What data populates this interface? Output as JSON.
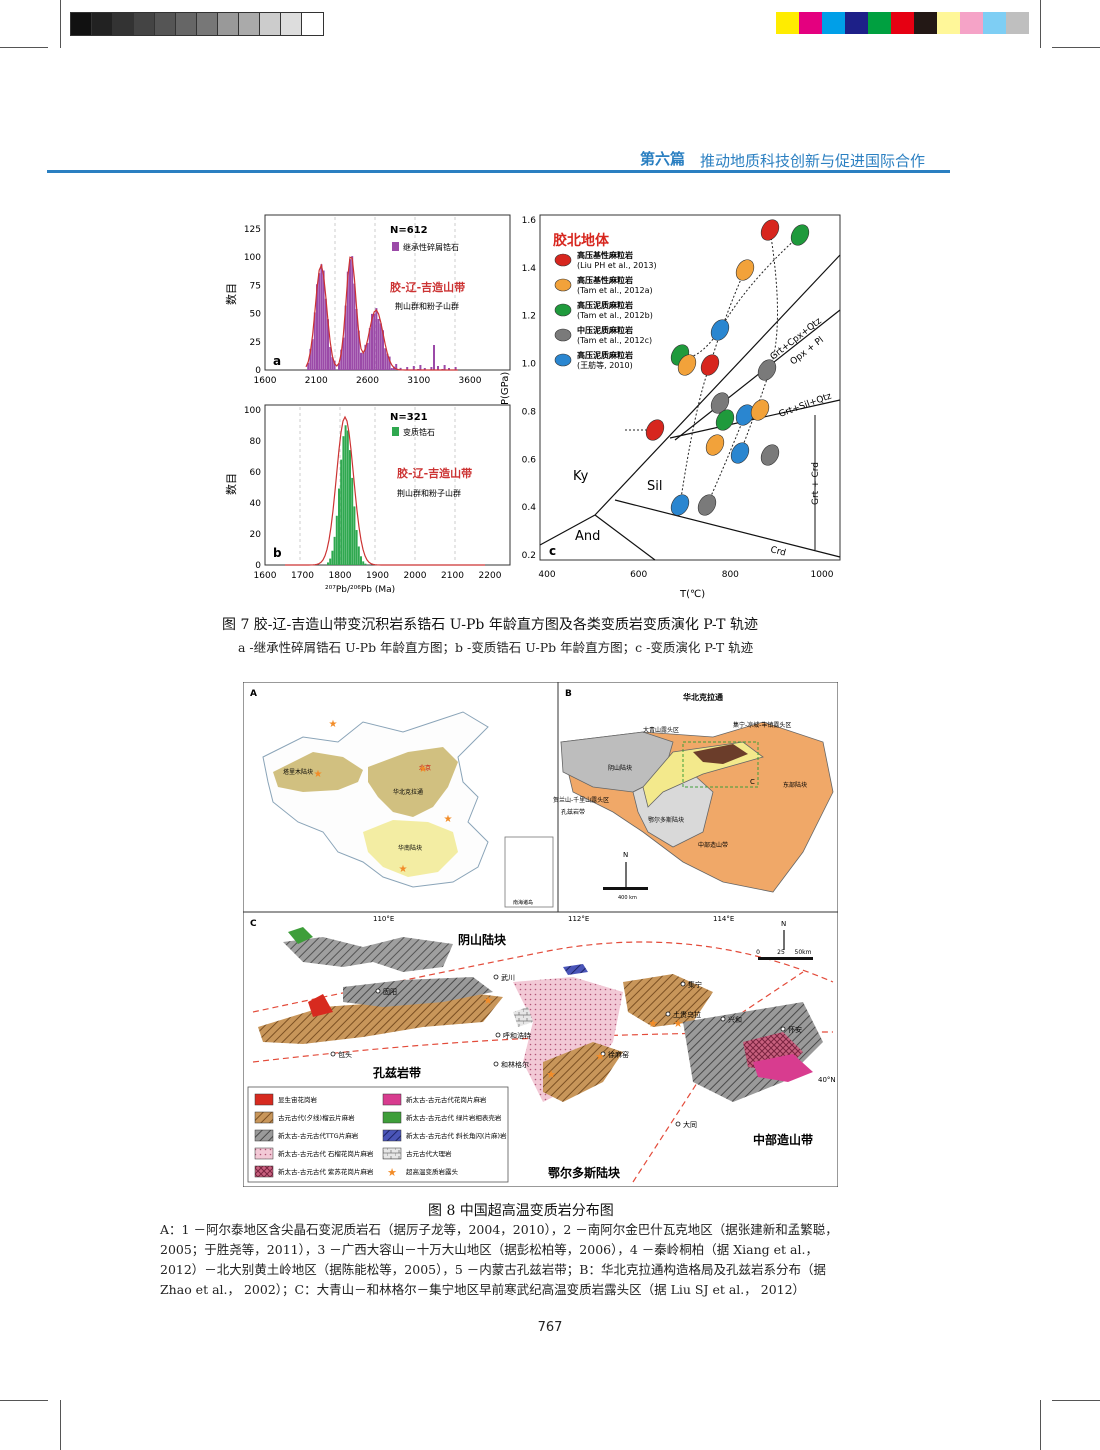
{
  "header": {
    "part_label": "第六篇",
    "title": "推动地质科技创新与促进国际合作"
  },
  "colors": {
    "grayscale_bar": [
      "#111111",
      "#222222",
      "#333333",
      "#444444",
      "#555555",
      "#666666",
      "#777777",
      "#999999",
      "#aaaaaa",
      "#cccccc",
      "#dddddd",
      "#ffffff"
    ],
    "color_bar": [
      "#ffec00",
      "#e4007f",
      "#009fe8",
      "#1d2088",
      "#00a040",
      "#e60012",
      "#231815",
      "#fff799",
      "#f5a3c7",
      "#7ecef4",
      "#bfbfbf"
    ],
    "accent": "#2a7fc1",
    "bar_purple": "#9b4aa8",
    "bar_green": "#2fa84f",
    "curve_red": "#cc3333"
  },
  "figure7": {
    "panel_a": {
      "label": "a",
      "n": "N=612",
      "legend": "继承性碎屑锆石",
      "belt": "胶-辽-吉造山带",
      "group": "荆山群和粉子山群",
      "ylabel": "数目",
      "yticks": [
        "0",
        "25",
        "50",
        "75",
        "100",
        "125"
      ],
      "xticks": [
        "1600",
        "2100",
        "2600",
        "3100",
        "3600"
      ]
    },
    "panel_b": {
      "label": "b",
      "n": "N=321",
      "legend": "变质锆石",
      "belt": "胶-辽-吉造山带",
      "group": "荆山群和粉子山群",
      "ylabel": "数目",
      "yticks": [
        "0",
        "20",
        "40",
        "60",
        "80",
        "100"
      ],
      "xticks": [
        "1600",
        "1700",
        "1800",
        "1900",
        "2000",
        "2100",
        "2200"
      ],
      "xlabel": "²⁰⁷Pb/²⁰⁶Pb (Ma)"
    },
    "panel_c": {
      "label": "c",
      "title": "胶北地体",
      "ylabel": "P(GPa)",
      "xlabel": "T(℃)",
      "yticks": [
        "0.2",
        "0.4",
        "0.6",
        "0.8",
        "1.0",
        "1.2",
        "1.4",
        "1.6"
      ],
      "xticks": [
        "400",
        "600",
        "800",
        "1000"
      ],
      "legend": [
        {
          "name": "高压基性麻粒岩",
          "ref": "(Liu PH et al., 2013)",
          "color": "#d7261e"
        },
        {
          "name": "高压基性麻粒岩",
          "ref": "(Tam et al., 2012a)",
          "color": "#f2a23a"
        },
        {
          "name": "高压泥质麻粒岩",
          "ref": "(Tam et al., 2012b)",
          "color": "#1f9a3c"
        },
        {
          "name": "中压泥质麻粒岩",
          "ref": "(Tam et al., 2012c)",
          "color": "#7a7a7a"
        },
        {
          "name": "高压泥质麻粒岩",
          "ref": "(王舫等, 2010)",
          "color": "#2a86d0"
        }
      ],
      "reaction_labels": [
        "Grt+Cpx+Qtz",
        "Opx + Pl",
        "Grt+Sil+Qtz",
        "Grt + Crd",
        "Crd"
      ],
      "field_labels": [
        "Ky",
        "Sil",
        "And"
      ]
    },
    "caption_title": "图 7 胶-辽-吉造山带变沉积岩系锆石 U-Pb 年龄直方图及各类变质岩变质演化 P-T 轨迹",
    "caption_sub": "a -继承性碎屑锆石 U-Pb 年龄直方图；b -变质锆石 U-Pb 年龄直方图；c -变质演化 P-T 轨迹"
  },
  "figure8": {
    "panel_a": {
      "label": "A",
      "labels": [
        "塔里木陆块",
        "北京",
        "华北克拉通",
        "华南陆块",
        "南海诸岛"
      ]
    },
    "panel_b": {
      "label": "B",
      "title": "华北克拉通",
      "labels": [
        "大青山露头区",
        "集宁-凉城-丰镇露头区",
        "阴山陆块",
        "贺兰山-千里山露头区",
        "孔兹岩带",
        "鄂尔多斯陆块",
        "中部造山带",
        "东部陆块",
        "C"
      ],
      "scale": "400 km",
      "north": "N"
    },
    "panel_c": {
      "label": "C",
      "coords": [
        "110°E",
        "112°E",
        "114°E",
        "40°N"
      ],
      "regions": [
        "阴山陆块",
        "孔兹岩带",
        "鄂尔多斯陆块",
        "中部造山带"
      ],
      "places": [
        "固阳",
        "武川",
        "呼和浩特",
        "包头",
        "和林格尔",
        "徐麻窑",
        "集宁",
        "土贵乌拉",
        "兴和",
        "怀安",
        "大同"
      ],
      "scale": [
        "0",
        "25",
        "50km"
      ],
      "north": "N",
      "legend": [
        {
          "text": "显生宙花岗岩",
          "color": "#d72a1f",
          "pattern": "solid"
        },
        {
          "text": "新太古-古元古代花岗片麻岩",
          "color": "#d83c8f",
          "pattern": "solid"
        },
        {
          "text": "古元古代(夕线)榴云片麻岩",
          "color": "#c08a4c",
          "pattern": "stripes"
        },
        {
          "text": "新太古-古元古代 绿片岩相表壳岩",
          "color": "#3e9e3a",
          "pattern": "solid"
        },
        {
          "text": "新太古-古元古代TTG片麻岩",
          "color": "#8a8a8a",
          "pattern": "stripes"
        },
        {
          "text": "新太古-古元古代 斜长角闪(片麻)岩",
          "color": "#3844a8",
          "pattern": "stripes"
        },
        {
          "text": "新太古-古元古代 石榴花岗片麻岩",
          "color": "#f2c9d6",
          "pattern": "dots"
        },
        {
          "text": "古元古代大理岩",
          "color": "#cfcfcf",
          "pattern": "bricks"
        },
        {
          "text": "新太古-古元古代 紫苏花岗片麻岩",
          "color": "#c8607e",
          "pattern": "cross"
        },
        {
          "text": "超高温变质岩露头",
          "color": "#f28c28",
          "pattern": "star"
        }
      ]
    },
    "caption_title": "图 8 中国超高温变质岩分布图",
    "caption_body": [
      "A：1 －阿尔泰地区含尖晶石变泥质岩石（据厉子龙等，2004，2010），2 －南阿尔金巴什瓦克地区（据张建新和孟繁聪，",
      "2005；于胜尧等，2011），3 －广西大容山－十万大山地区（据彭松柏等，2006），4 －秦岭桐柏（据 Xiang et al.，",
      "2012）－北大别黄土岭地区（据陈能松等，2005），5 －内蒙古孔兹岩带；B：华北克拉通构造格局及孔兹岩系分布（据",
      "Zhao et al.， 2002）；C：大青山－和林格尔－集宁地区早前寒武纪高温变质岩露头区（据 Liu SJ et al.， 2012）"
    ]
  },
  "page_number": "767"
}
